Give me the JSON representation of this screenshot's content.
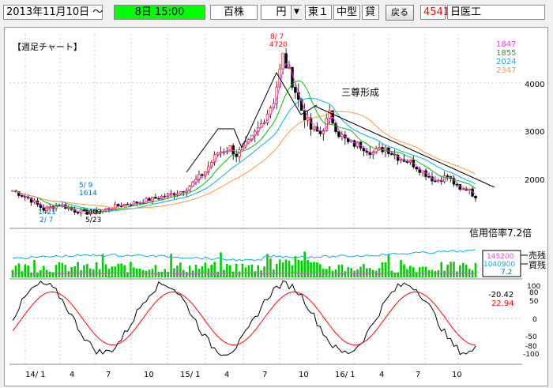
{
  "toolbar": {
    "date": "2013年11月10日 ～",
    "time": "8日 15:00",
    "unit": "百株",
    "currency": "円",
    "market": "東１",
    "size": "中型",
    "loan": "貸",
    "back_label": "戻る",
    "code": "4541",
    "company": "日医工"
  },
  "chart": {
    "title": "【週足チャート】",
    "annotation_main": "三尊形成",
    "ma_labels": [
      {
        "text": "1847",
        "color": "#ff33ff"
      },
      {
        "text": "1855",
        "color": "#00c000"
      },
      {
        "text": "2024",
        "color": "#00b0f0"
      },
      {
        "text": "2347",
        "color": "#ff9933"
      }
    ],
    "price_ticks": [
      "4000",
      "3000",
      "2000"
    ],
    "peak_date": "8/ 7",
    "peak_value": "4720",
    "low1_value": "1421",
    "low1_date": "2/ 7",
    "high1_date": "5/ 9",
    "high1_value": "1614",
    "low2_value": "1403",
    "low2_date": "5/23",
    "margin_ratio": "信用倍率7.2倍",
    "sell_value": "145200",
    "buy_value": "1040900",
    "ratio_value": "7.2",
    "sell_label": "売残",
    "buy_label": "買残",
    "osc_value1": "-20.42",
    "osc_value2": "22.94",
    "osc_ticks": [
      "100",
      "80",
      "50",
      "0",
      "-50",
      "-80",
      "-100"
    ],
    "x_labels": [
      "14/ 1",
      "4",
      "7",
      "10",
      "15/ 1",
      "4",
      "7",
      "10",
      "16/ 1",
      "4",
      "7",
      "10"
    ]
  }
}
